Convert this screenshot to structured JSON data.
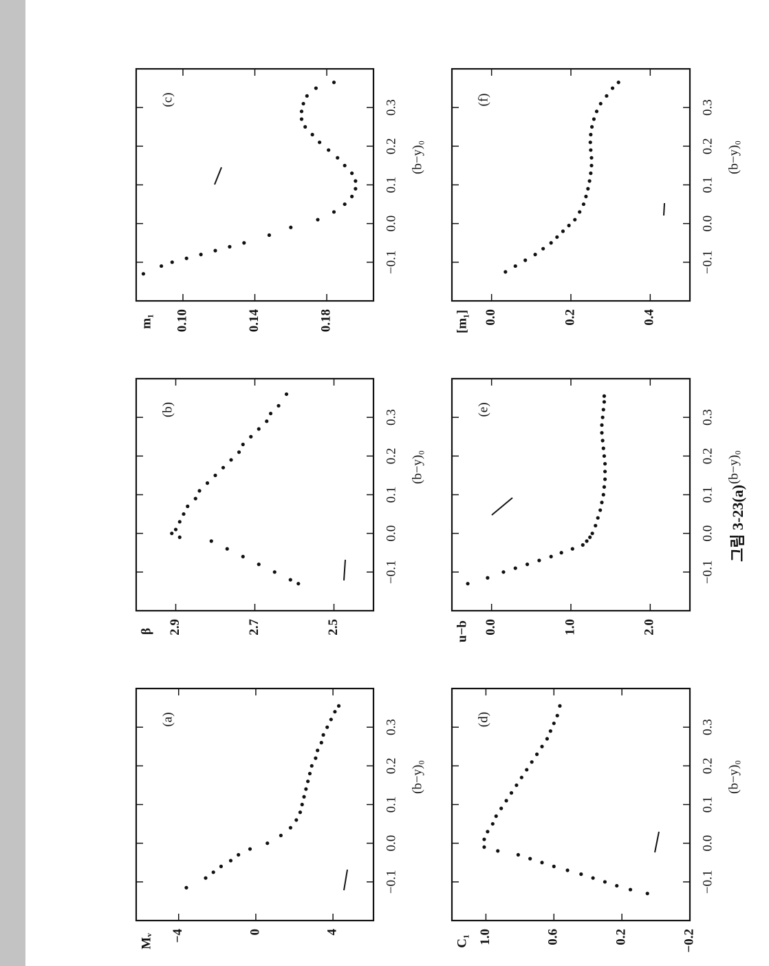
{
  "caption": "그림 3-23(a)",
  "chart_data": [
    {
      "type": "scatter",
      "panel_label": "(a)",
      "ylabel": "Mᵥ",
      "xlabel": "(b−y)₀",
      "xlim": [
        -0.2,
        0.4
      ],
      "ylim": [
        6.1,
        -6.2
      ],
      "xticks": [
        {
          "value": -0.1,
          "label": "−0.1"
        },
        {
          "value": 0,
          "label": "0.0"
        },
        0.1,
        0.2,
        0.3
      ],
      "yticks": [
        {
          "value": -4,
          "label": "−4"
        },
        0,
        4
      ],
      "x": [
        -0.115,
        -0.09,
        -0.075,
        -0.06,
        -0.045,
        -0.03,
        -0.015,
        0.0,
        0.02,
        0.04,
        0.06,
        0.08,
        0.1,
        0.12,
        0.14,
        0.16,
        0.18,
        0.2,
        0.22,
        0.24,
        0.26,
        0.28,
        0.3,
        0.32,
        0.34,
        0.355
      ],
      "values": [
        -3.6,
        -2.6,
        -2.2,
        -1.8,
        -1.3,
        -0.9,
        -0.3,
        0.6,
        1.3,
        1.8,
        2.1,
        2.3,
        2.4,
        2.5,
        2.6,
        2.7,
        2.8,
        2.9,
        3.1,
        3.2,
        3.4,
        3.5,
        3.7,
        3.9,
        4.1,
        4.3
      ]
    },
    {
      "type": "scatter",
      "panel_label": "(b)",
      "ylabel": "β",
      "xlabel": "(b−y)₀",
      "xlim": [
        -0.2,
        0.4
      ],
      "ylim": [
        2.4,
        3.0
      ],
      "xticks": [
        {
          "value": -0.1,
          "label": "−0.1"
        },
        {
          "value": 0,
          "label": "0.0"
        },
        0.1,
        0.2,
        0.3
      ],
      "yticks": [
        2.9,
        2.7,
        2.5
      ],
      "x": [
        -0.13,
        -0.12,
        -0.1,
        -0.08,
        -0.06,
        -0.04,
        -0.02,
        -0.01,
        0.0,
        0.01,
        0.03,
        0.05,
        0.07,
        0.09,
        0.11,
        0.13,
        0.15,
        0.17,
        0.19,
        0.21,
        0.23,
        0.25,
        0.27,
        0.29,
        0.31,
        0.33,
        0.36
      ],
      "values": [
        2.59,
        2.61,
        2.65,
        2.69,
        2.73,
        2.77,
        2.81,
        2.89,
        2.91,
        2.9,
        2.89,
        2.88,
        2.87,
        2.85,
        2.84,
        2.82,
        2.8,
        2.78,
        2.76,
        2.74,
        2.73,
        2.71,
        2.69,
        2.67,
        2.66,
        2.64,
        2.62
      ]
    },
    {
      "type": "scatter",
      "panel_label": "(c)",
      "ylabel": "m₁",
      "xlabel": "(b−y)₀",
      "xlim": [
        -0.2,
        0.4
      ],
      "ylim": [
        0.206,
        0.074
      ],
      "xticks": [
        {
          "value": -0.1,
          "label": "−0.1"
        },
        {
          "value": 0,
          "label": "0.0"
        },
        0.1,
        0.2,
        0.3
      ],
      "yticks": [
        {
          "value": 0.1,
          "label": "0.10"
        },
        0.14,
        0.18
      ],
      "x": [
        -0.13,
        -0.11,
        -0.1,
        -0.09,
        -0.08,
        -0.07,
        -0.06,
        -0.05,
        -0.03,
        -0.01,
        0.01,
        0.03,
        0.05,
        0.07,
        0.09,
        0.11,
        0.13,
        0.15,
        0.17,
        0.19,
        0.21,
        0.23,
        0.25,
        0.27,
        0.29,
        0.31,
        0.33,
        0.35,
        0.365
      ],
      "values": [
        0.078,
        0.088,
        0.094,
        0.102,
        0.11,
        0.118,
        0.126,
        0.134,
        0.148,
        0.16,
        0.175,
        0.184,
        0.19,
        0.194,
        0.196,
        0.196,
        0.194,
        0.19,
        0.186,
        0.181,
        0.176,
        0.172,
        0.168,
        0.166,
        0.166,
        0.167,
        0.169,
        0.174,
        0.184
      ]
    },
    {
      "type": "scatter",
      "panel_label": "(d)",
      "ylabel": "C₁",
      "xlabel": "(b−y)₀",
      "xlim": [
        -0.2,
        0.4
      ],
      "ylim": [
        -0.2,
        1.2
      ],
      "xticks": [
        {
          "value": -0.1,
          "label": "−0.1"
        },
        {
          "value": 0,
          "label": "0.0"
        },
        0.1,
        0.2,
        0.3
      ],
      "yticks": [
        {
          "value": 1,
          "label": "1.0"
        },
        0.6,
        0.2,
        {
          "value": -0.2,
          "label": "−0.2"
        }
      ],
      "x": [
        -0.13,
        -0.12,
        -0.11,
        -0.1,
        -0.09,
        -0.08,
        -0.07,
        -0.06,
        -0.05,
        -0.04,
        -0.03,
        -0.02,
        -0.01,
        0.01,
        0.03,
        0.05,
        0.07,
        0.09,
        0.11,
        0.13,
        0.15,
        0.17,
        0.19,
        0.21,
        0.23,
        0.25,
        0.27,
        0.29,
        0.31,
        0.33,
        0.355
      ],
      "values": [
        0.05,
        0.15,
        0.23,
        0.3,
        0.37,
        0.44,
        0.52,
        0.6,
        0.67,
        0.74,
        0.81,
        0.93,
        1.01,
        1.01,
        0.99,
        0.96,
        0.94,
        0.91,
        0.88,
        0.85,
        0.82,
        0.79,
        0.76,
        0.73,
        0.7,
        0.67,
        0.64,
        0.62,
        0.6,
        0.58,
        0.565
      ]
    },
    {
      "type": "scatter",
      "panel_label": "(e)",
      "ylabel": "u−b",
      "xlabel": "(b−y)₀",
      "xlim": [
        -0.2,
        0.4
      ],
      "ylim": [
        2.5,
        -0.5
      ],
      "xticks": [
        {
          "value": -0.1,
          "label": "−0.1"
        },
        {
          "value": 0,
          "label": "0.0"
        },
        0.1,
        0.2,
        0.3
      ],
      "yticks": [
        {
          "value": 0,
          "label": "0.0"
        },
        {
          "value": 1,
          "label": "1.0"
        },
        {
          "value": 2,
          "label": "2.0"
        }
      ],
      "x": [
        -0.13,
        -0.115,
        -0.1,
        -0.09,
        -0.08,
        -0.07,
        -0.06,
        -0.05,
        -0.04,
        -0.03,
        -0.02,
        -0.01,
        0.0,
        0.02,
        0.04,
        0.06,
        0.08,
        0.1,
        0.12,
        0.14,
        0.16,
        0.18,
        0.2,
        0.22,
        0.24,
        0.26,
        0.28,
        0.3,
        0.32,
        0.34,
        0.355
      ],
      "values": [
        -0.3,
        -0.05,
        0.15,
        0.3,
        0.45,
        0.6,
        0.75,
        0.88,
        1.02,
        1.15,
        1.2,
        1.24,
        1.27,
        1.31,
        1.34,
        1.37,
        1.39,
        1.41,
        1.42,
        1.43,
        1.43,
        1.43,
        1.42,
        1.41,
        1.4,
        1.39,
        1.39,
        1.4,
        1.41,
        1.42,
        1.42
      ]
    },
    {
      "type": "scatter",
      "panel_label": "(f)",
      "ylabel": "[m₁]",
      "xlabel": "(b−y)₀",
      "xlim": [
        -0.2,
        0.4
      ],
      "ylim": [
        0.5,
        -0.1
      ],
      "xticks": [
        {
          "value": -0.1,
          "label": "−0.1"
        },
        {
          "value": 0,
          "label": "0.0"
        },
        0.1,
        0.2,
        0.3
      ],
      "yticks": [
        {
          "value": 0,
          "label": "0.0"
        },
        0.2,
        0.4
      ],
      "x": [
        -0.125,
        -0.11,
        -0.095,
        -0.08,
        -0.065,
        -0.05,
        -0.035,
        -0.02,
        -0.005,
        0.01,
        0.03,
        0.05,
        0.07,
        0.09,
        0.11,
        0.13,
        0.15,
        0.17,
        0.19,
        0.21,
        0.23,
        0.25,
        0.27,
        0.29,
        0.31,
        0.33,
        0.35,
        0.365
      ],
      "values": [
        0.035,
        0.06,
        0.085,
        0.11,
        0.13,
        0.15,
        0.165,
        0.18,
        0.195,
        0.21,
        0.222,
        0.232,
        0.238,
        0.243,
        0.247,
        0.25,
        0.252,
        0.252,
        0.25,
        0.249,
        0.25,
        0.253,
        0.258,
        0.265,
        0.275,
        0.29,
        0.305,
        0.32
      ]
    }
  ]
}
